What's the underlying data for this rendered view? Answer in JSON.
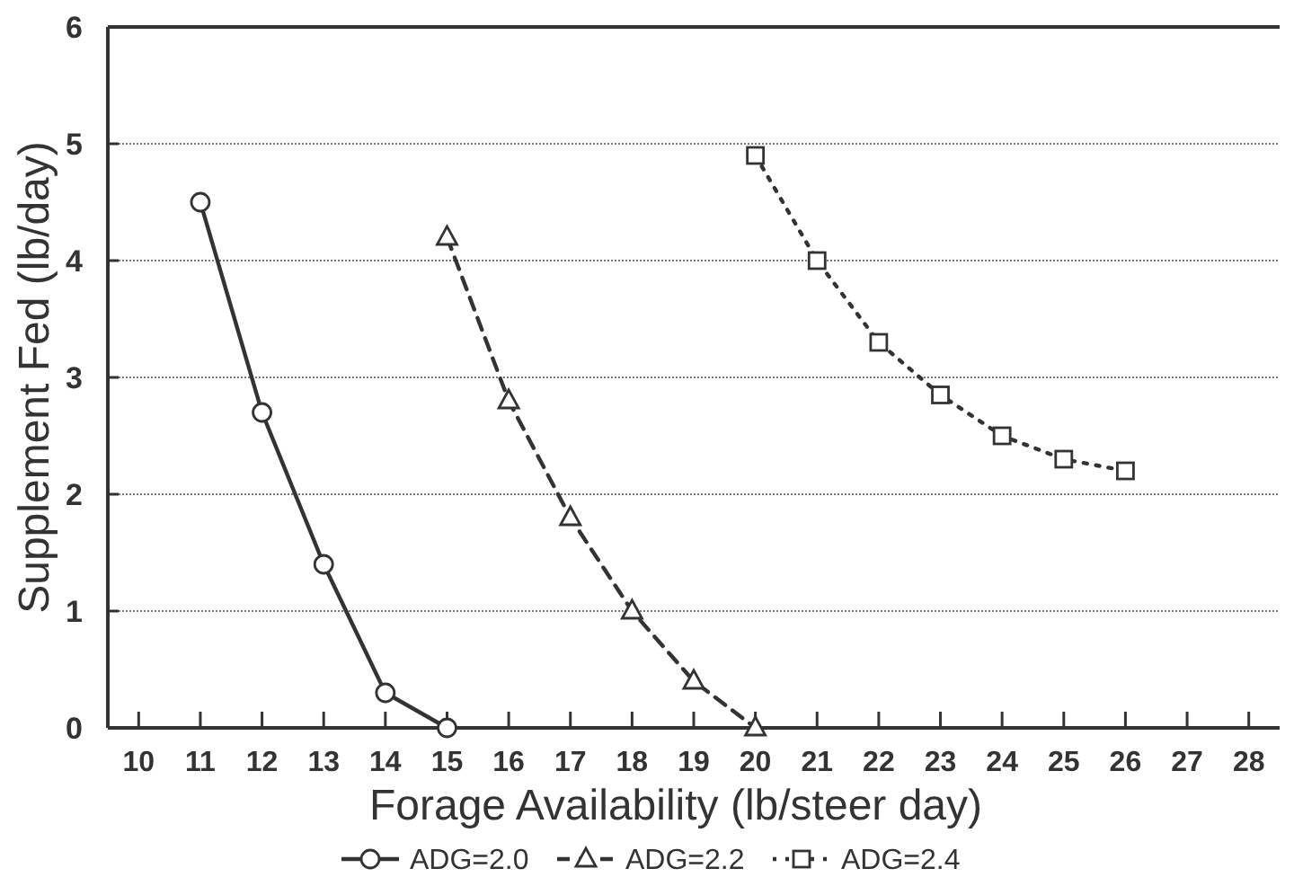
{
  "chart_data": {
    "type": "line",
    "xlabel": "Forage Availability (lb/steer day)",
    "ylabel": "Supplement Fed (lb/day)",
    "xlim": [
      9.5,
      28.5
    ],
    "xticks": [
      10,
      11,
      12,
      13,
      14,
      15,
      16,
      17,
      18,
      19,
      20,
      21,
      22,
      23,
      24,
      25,
      26,
      27,
      28
    ],
    "ylim": [
      0,
      6
    ],
    "yticks": [
      0,
      1,
      2,
      3,
      4,
      5,
      6
    ],
    "grid": "y",
    "legend": "bottom",
    "series": [
      {
        "name": "ADG=2.0",
        "color": "#333333",
        "x": [
          11,
          12,
          13,
          14,
          15
        ],
        "values": [
          4.5,
          2.7,
          1.4,
          0.3,
          0
        ],
        "marker": "circle",
        "line_style": "solid"
      },
      {
        "name": "ADG=2.2",
        "color": "#333333",
        "x": [
          15,
          16,
          17,
          18,
          19,
          20
        ],
        "values": [
          4.2,
          2.8,
          1.8,
          1.0,
          0.4,
          0
        ],
        "marker": "triangle",
        "line_style": "dashed"
      },
      {
        "name": "ADG=2.4",
        "color": "#333333",
        "x": [
          20,
          21,
          22,
          23,
          24,
          25,
          26
        ],
        "values": [
          4.9,
          4.0,
          3.3,
          2.85,
          2.5,
          2.3,
          2.2
        ],
        "marker": "square",
        "line_style": "dotted"
      }
    ]
  }
}
